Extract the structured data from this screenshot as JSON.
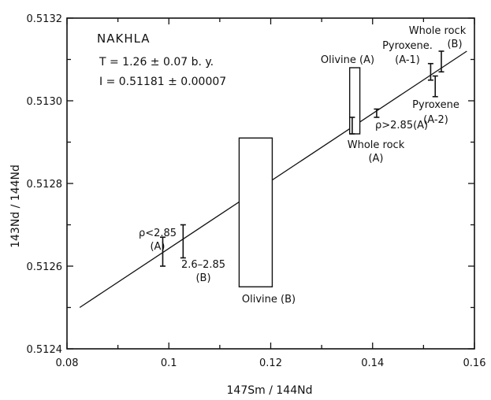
{
  "chart_data": {
    "type": "scatter",
    "title": "NAKHLA",
    "subtitle_lines": [
      "T = 1.26 ± 0.07 b. y.",
      "I = 0.51181 ± 0.00007"
    ],
    "xlabel": "147Sm / 144Nd",
    "ylabel": "143Nd / 144Nd",
    "xlim": [
      0.08,
      0.16
    ],
    "ylim": [
      0.5124,
      0.5132
    ],
    "x_ticks": [
      0.08,
      0.1,
      0.12,
      0.14,
      0.16
    ],
    "x_tick_labels": [
      "0.08",
      "0.1",
      "0.12",
      "0.14",
      "0.16"
    ],
    "y_ticks": [
      0.5124,
      0.5126,
      0.5128,
      0.513,
      0.5132
    ],
    "y_tick_labels": [
      "0.5124",
      "0.5126",
      "0.5128",
      "0.5130",
      "0.5132"
    ],
    "grid": false,
    "isochron": {
      "x": [
        0.0825,
        0.1585
      ],
      "y": [
        0.5125,
        0.51312
      ]
    },
    "error_bars": [
      {
        "x": 0.0988,
        "y_low": 0.5126,
        "y_high": 0.51267,
        "label_lines": [
          "ρ<2.85",
          "(A)"
        ]
      },
      {
        "x": 0.1028,
        "y_low": 0.51262,
        "y_high": 0.5127,
        "label_lines": [
          "2.6–2.85",
          "(B)"
        ]
      },
      {
        "x": 0.136,
        "y_low": 0.51292,
        "y_high": 0.51296,
        "label_lines": [
          "Whole rock",
          "(A)"
        ]
      },
      {
        "x": 0.1408,
        "y_low": 0.51296,
        "y_high": 0.51298,
        "label_lines": [
          "ρ>2.85(A)"
        ]
      },
      {
        "x": 0.1514,
        "y_low": 0.51305,
        "y_high": 0.51309,
        "label_lines": [
          "Pyroxene.",
          "(A-1)"
        ]
      },
      {
        "x": 0.1523,
        "y_low": 0.51301,
        "y_high": 0.51306,
        "label_lines": [
          "Pyroxene",
          "(A-2)"
        ]
      },
      {
        "x": 0.1535,
        "y_low": 0.51307,
        "y_high": 0.51312,
        "label_lines": [
          "Whole rock",
          "(B)"
        ]
      }
    ],
    "boxes": [
      {
        "x_low": 0.1138,
        "x_high": 0.1203,
        "y_low": 0.51255,
        "y_high": 0.51291,
        "label": "Olivine (B)"
      },
      {
        "x_low": 0.1355,
        "x_high": 0.1375,
        "y_low": 0.51292,
        "y_high": 0.51308,
        "label": "Olivine (A)"
      }
    ]
  }
}
